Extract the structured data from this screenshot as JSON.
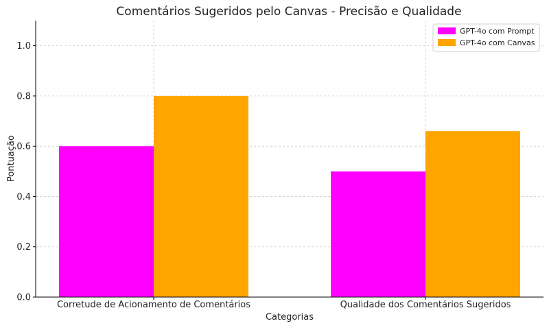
{
  "chart_data": {
    "type": "bar",
    "title": "Comentários Sugeridos pelo Canvas - Precisão e Qualidade",
    "xlabel": "Categorias",
    "ylabel": "Pontuação",
    "categories": [
      "Corretude de Acionamento de Comentários",
      "Qualidade dos Comentários Sugeridos"
    ],
    "series": [
      {
        "name": "GPT-4o com Prompt",
        "color": "#ff00ff",
        "values": [
          0.6,
          0.5
        ]
      },
      {
        "name": "GPT-4o com Canvas",
        "color": "#ffa500",
        "values": [
          0.8,
          0.66
        ]
      }
    ],
    "ylim": [
      0,
      1.1
    ],
    "yticks": [
      "0.0",
      "0.2",
      "0.4",
      "0.6",
      "0.8",
      "1.0"
    ],
    "grid": true,
    "legend_position": "top-right"
  }
}
